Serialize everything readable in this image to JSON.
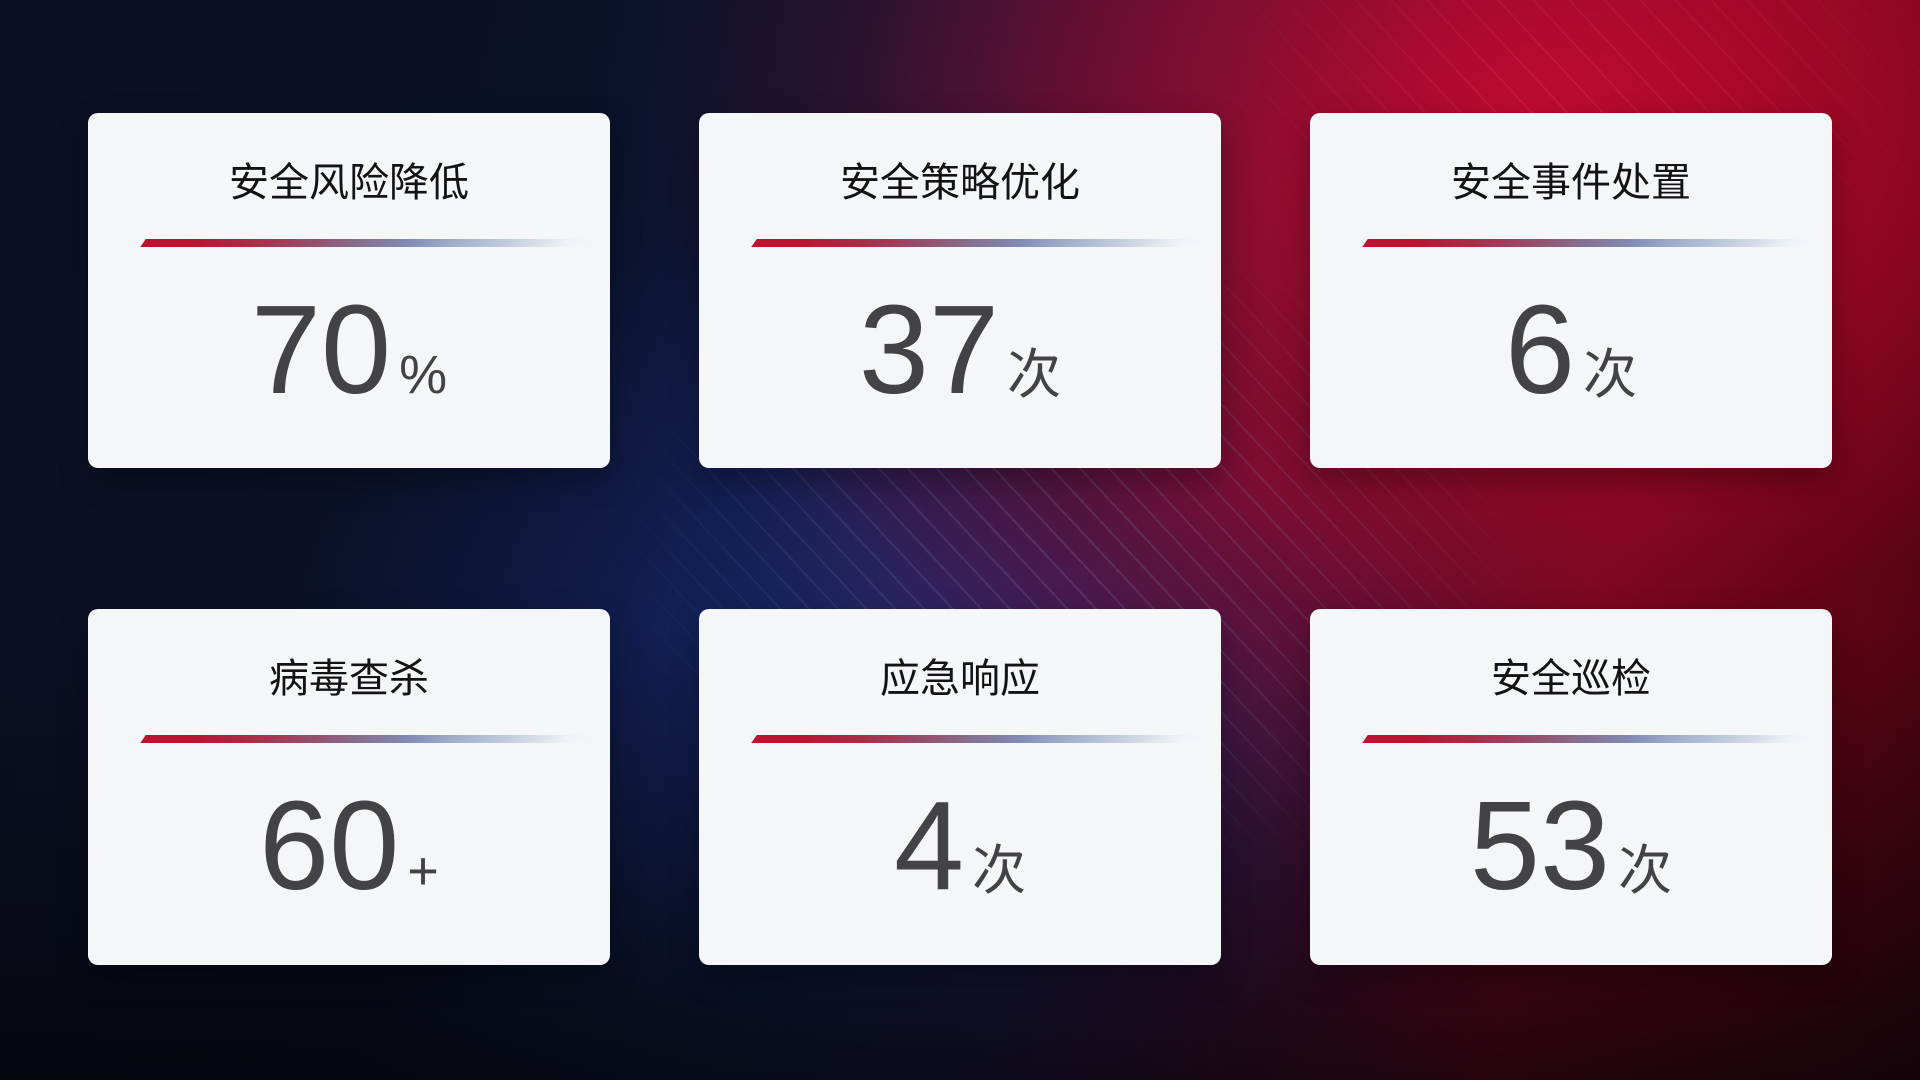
{
  "cards": [
    {
      "title": "安全风险降低",
      "value": "70",
      "unit": "%"
    },
    {
      "title": "安全策略优化",
      "value": "37",
      "unit": "次"
    },
    {
      "title": "安全事件处置",
      "value": "6",
      "unit": "次"
    },
    {
      "title": "病毒查杀",
      "value": "60",
      "unit": "+"
    },
    {
      "title": "应急响应",
      "value": "4",
      "unit": "次"
    },
    {
      "title": "安全巡检",
      "value": "53",
      "unit": "次"
    }
  ],
  "colors": {
    "card_background": "#f4f6f8",
    "title_text": "#131314",
    "value_text": "#424247",
    "divider_start": "#c30f31",
    "divider_mid": "#8389b2",
    "divider_end": "#d6dde8",
    "background_blue": "#111c46",
    "background_red": "#a00920"
  }
}
